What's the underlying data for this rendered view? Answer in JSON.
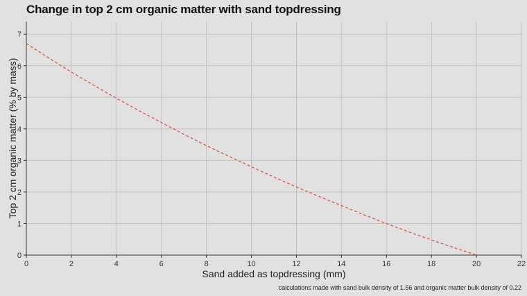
{
  "chart_data": {
    "type": "line",
    "title": "Change in top 2 cm organic matter with sand topdressing",
    "xlabel": "Sand added as topdressing (mm)",
    "ylabel": "Top 2 cm organic matter (% by mass)",
    "caption": "calculations made with sand bulk density of 1.56 and organic matter bulk density of 0.22",
    "xlim": [
      0,
      22
    ],
    "ylim": [
      0,
      7.4
    ],
    "x_ticks": [
      0,
      2,
      4,
      6,
      8,
      10,
      12,
      14,
      16,
      18,
      20,
      22
    ],
    "y_ticks": [
      0,
      1,
      2,
      3,
      4,
      5,
      6,
      7
    ],
    "grid": true,
    "series": [
      {
        "line_style": "dashed",
        "color": "#d9483b",
        "x": [
          0,
          2,
          4,
          6,
          8,
          10,
          12,
          14,
          16,
          18,
          20
        ],
        "y": [
          6.7,
          5.8,
          4.97,
          4.2,
          3.47,
          2.8,
          2.16,
          1.57,
          1.0,
          0.48,
          0.0
        ]
      }
    ]
  }
}
